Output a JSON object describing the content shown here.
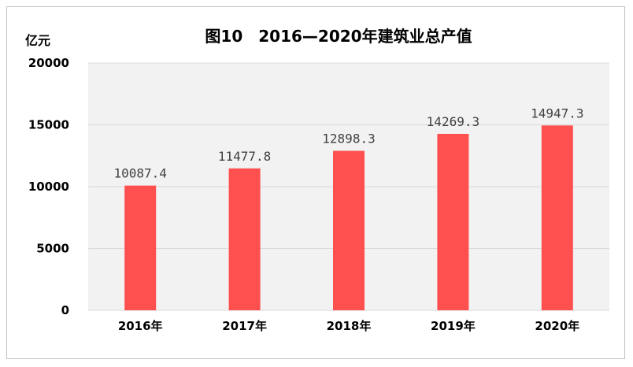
{
  "chart_data": {
    "type": "bar",
    "title": "图10　2016—2020年建筑业总产值",
    "ylabel": "亿元",
    "categories": [
      "2016年",
      "2017年",
      "2018年",
      "2019年",
      "2020年"
    ],
    "values": [
      10087.4,
      11477.8,
      12898.3,
      14269.3,
      14947.3
    ],
    "data_labels": [
      "10087.4",
      "11477.8",
      "12898.3",
      "14269.3",
      "14947.3"
    ],
    "ylim": [
      0,
      20000
    ],
    "yticks": [
      0,
      5000,
      10000,
      15000,
      20000
    ],
    "grid": true,
    "legend": "none"
  },
  "colors": {
    "bar": "#ff5050",
    "plot_bg": "#f2f2f2",
    "grid": "#d9d9d9",
    "frame": "#bfbfbf"
  }
}
